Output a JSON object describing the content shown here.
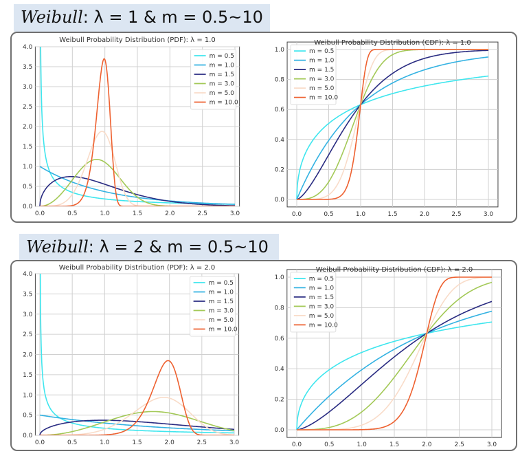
{
  "sections": [
    {
      "heading_italic": "Weibull",
      "heading_rest": ": λ = 1 & m  =  0.5~10"
    },
    {
      "heading_italic": "Weibull",
      "heading_rest": ": λ = 2 & m  =  0.5~10"
    }
  ],
  "colors": {
    "m=0.5": "#3fe6ee",
    "m=1.0": "#33b2e2",
    "m=1.5": "#2a2c82",
    "m=3.0": "#a3c957",
    "m=5.0": "#f9dcc9",
    "m=10.0": "#ee6130"
  },
  "chart_data": [
    {
      "type": "line",
      "title": "Weibull Probability Distribution (PDF): λ = 1.0",
      "function": "pdf",
      "lambda": 1.0,
      "xlim": [
        0,
        3
      ],
      "ylim": [
        0,
        4
      ],
      "grid": true,
      "legend": "top-right",
      "xticks": [
        "0.0",
        "0.5",
        "1.0",
        "1.5",
        "2.0",
        "2.5",
        "3.0"
      ],
      "yticks": [
        "0.0",
        "0.5",
        "1.0",
        "1.5",
        "2.0",
        "2.5",
        "3.0",
        "3.5",
        "4.0"
      ],
      "series": [
        {
          "name": "m = 0.5",
          "m": 0.5
        },
        {
          "name": "m = 1.0",
          "m": 1.0
        },
        {
          "name": "m = 1.5",
          "m": 1.5
        },
        {
          "name": "m = 3.0",
          "m": 3.0
        },
        {
          "name": "m = 5.0",
          "m": 5.0
        },
        {
          "name": "m = 10.0",
          "m": 10.0
        }
      ]
    },
    {
      "type": "line",
      "title": "Weibull Probability Distribution (CDF): λ = 1.0",
      "function": "cdf",
      "lambda": 1.0,
      "xlim": [
        0,
        3
      ],
      "ylim": [
        0,
        1
      ],
      "grid": true,
      "legend": "top-left",
      "xticks": [
        "0.0",
        "0.5",
        "1.0",
        "1.5",
        "2.0",
        "2.5",
        "3.0"
      ],
      "yticks": [
        "0.0",
        "0.2",
        "0.4",
        "0.6",
        "0.8",
        "1.0"
      ],
      "series": [
        {
          "name": "m = 0.5",
          "m": 0.5
        },
        {
          "name": "m = 1.0",
          "m": 1.0
        },
        {
          "name": "m = 1.5",
          "m": 1.5
        },
        {
          "name": "m = 3.0",
          "m": 3.0
        },
        {
          "name": "m = 5.0",
          "m": 5.0
        },
        {
          "name": "m = 10.0",
          "m": 10.0
        }
      ]
    },
    {
      "type": "line",
      "title": "Weibull Probability Distribution (PDF): λ = 2.0",
      "function": "pdf",
      "lambda": 2.0,
      "xlim": [
        0,
        3
      ],
      "ylim": [
        0,
        4
      ],
      "grid": true,
      "legend": "top-right",
      "xticks": [
        "0.0",
        "0.5",
        "1.0",
        "1.5",
        "2.0",
        "2.5",
        "3.0"
      ],
      "yticks": [
        "0.0",
        "0.5",
        "1.0",
        "1.5",
        "2.0",
        "2.5",
        "3.0",
        "3.5",
        "4.0"
      ],
      "series": [
        {
          "name": "m = 0.5",
          "m": 0.5
        },
        {
          "name": "m = 1.0",
          "m": 1.0
        },
        {
          "name": "m = 1.5",
          "m": 1.5
        },
        {
          "name": "m = 3.0",
          "m": 3.0
        },
        {
          "name": "m = 5.0",
          "m": 5.0
        },
        {
          "name": "m = 10.0",
          "m": 10.0
        }
      ]
    },
    {
      "type": "line",
      "title": "Weibull Probability Distribution (CDF): λ = 2.0",
      "function": "cdf",
      "lambda": 2.0,
      "xlim": [
        0,
        3
      ],
      "ylim": [
        0,
        1
      ],
      "grid": true,
      "legend": "top-left",
      "xticks": [
        "0.0",
        "0.5",
        "1.0",
        "1.5",
        "2.0",
        "2.5",
        "3.0"
      ],
      "yticks": [
        "0.0",
        "0.2",
        "0.4",
        "0.6",
        "0.8",
        "1.0"
      ],
      "series": [
        {
          "name": "m = 0.5",
          "m": 0.5
        },
        {
          "name": "m = 1.0",
          "m": 1.0
        },
        {
          "name": "m = 1.5",
          "m": 1.5
        },
        {
          "name": "m = 3.0",
          "m": 3.0
        },
        {
          "name": "m = 5.0",
          "m": 5.0
        },
        {
          "name": "m = 10.0",
          "m": 10.0
        }
      ]
    }
  ]
}
